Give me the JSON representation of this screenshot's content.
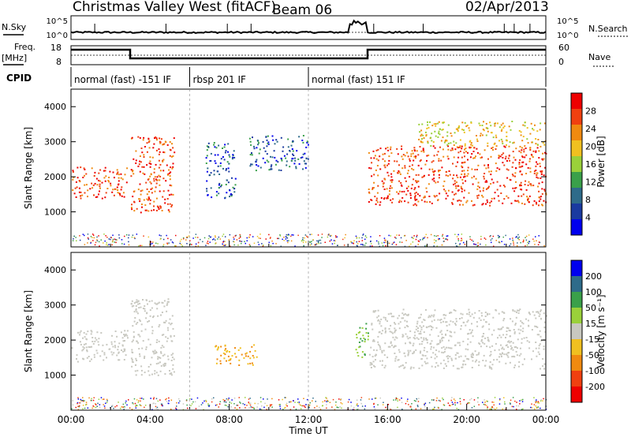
{
  "header": {
    "title": "Christmas Valley West (fitACF)",
    "beam": "Beam 06",
    "date": "02/Apr/2013"
  },
  "noise_panel": {
    "left_label": "N.Sky",
    "right_label": "N.Search",
    "left_ticks": [
      "10^5",
      "10^0"
    ],
    "right_ticks": [
      "10^5",
      "10^0"
    ]
  },
  "freq_panel": {
    "left_label_1": "Freq.",
    "left_label_2": "[MHz]",
    "right_label": "Nave",
    "left_ticks": [
      "18",
      "8"
    ],
    "right_ticks": [
      "60",
      "0"
    ]
  },
  "cpid": {
    "label": "CPID",
    "segments": [
      {
        "start": 0,
        "end": 6,
        "label": "normal (fast) -151 IF"
      },
      {
        "start": 6,
        "end": 12,
        "label": "rbsp 201 IF"
      },
      {
        "start": 12,
        "end": 24,
        "label": "normal (fast) 151 IF"
      }
    ]
  },
  "colors": {
    "power": [
      "#0000ee",
      "#1a3aa0",
      "#2e6b8a",
      "#3aa04a",
      "#9ad03a",
      "#f0c020",
      "#f08a10",
      "#f04010",
      "#ee0000"
    ],
    "velocity": [
      "#ee0000",
      "#f04010",
      "#f08a10",
      "#f0c020",
      "#c8c8c0",
      "#9ad03a",
      "#3aa04a",
      "#2e6b8a",
      "#0000ee"
    ],
    "ground_scatter": "#c8c8c0"
  },
  "chart_data": [
    {
      "type": "heatmap",
      "name": "power",
      "xlabel": "",
      "ylabel": "Slant Range [km]",
      "xlim": [
        0,
        24
      ],
      "ylim": [
        0,
        4500
      ],
      "yticks": [
        "1000",
        "2000",
        "3000",
        "4000"
      ],
      "colorbar_label": "Power [dB]",
      "colorbar_ticks": [
        "28",
        "24",
        "20",
        "16",
        "12",
        "8",
        "4"
      ],
      "features": [
        {
          "t0": 0.0,
          "t1": 2.9,
          "r0": 1400,
          "r1": 2300,
          "level": "high"
        },
        {
          "t0": 3.0,
          "t1": 5.2,
          "r0": 1000,
          "r1": 3200,
          "level": "high"
        },
        {
          "t0": 6.8,
          "t1": 8.3,
          "r0": 1400,
          "r1": 3000,
          "level": "low"
        },
        {
          "t0": 9.0,
          "t1": 12.0,
          "r0": 2200,
          "r1": 3200,
          "level": "low"
        },
        {
          "t0": 15.0,
          "t1": 24.0,
          "r0": 1200,
          "r1": 2900,
          "level": "high"
        },
        {
          "t0": 17.5,
          "t1": 24.0,
          "r0": 2900,
          "r1": 3600,
          "level": "mid"
        }
      ]
    },
    {
      "type": "heatmap",
      "name": "velocity",
      "xlabel": "Time UT",
      "ylabel": "Slant Range [km]",
      "xlim": [
        0,
        24
      ],
      "ylim": [
        0,
        4500
      ],
      "xticks": [
        "00:00",
        "04:00",
        "08:00",
        "12:00",
        "16:00",
        "20:00",
        "00:00"
      ],
      "yticks": [
        "1000",
        "2000",
        "3000",
        "4000"
      ],
      "colorbar_label": "Velocity [m s⁻¹]",
      "colorbar_ticks": [
        "200",
        "100",
        "50",
        "15",
        "-15",
        "-50",
        "-100",
        "-200"
      ],
      "features": [
        {
          "t0": 0.0,
          "t1": 2.9,
          "r0": 1400,
          "r1": 2300,
          "level": "gs"
        },
        {
          "t0": 3.0,
          "t1": 5.2,
          "r0": 1000,
          "r1": 3200,
          "level": "gs"
        },
        {
          "t0": 7.2,
          "t1": 9.4,
          "r0": 1300,
          "r1": 1900,
          "level": "neg"
        },
        {
          "t0": 14.3,
          "t1": 15.0,
          "r0": 1500,
          "r1": 2500,
          "level": "pos"
        },
        {
          "t0": 15.0,
          "t1": 24.0,
          "r0": 1200,
          "r1": 2900,
          "level": "gs"
        }
      ]
    }
  ]
}
